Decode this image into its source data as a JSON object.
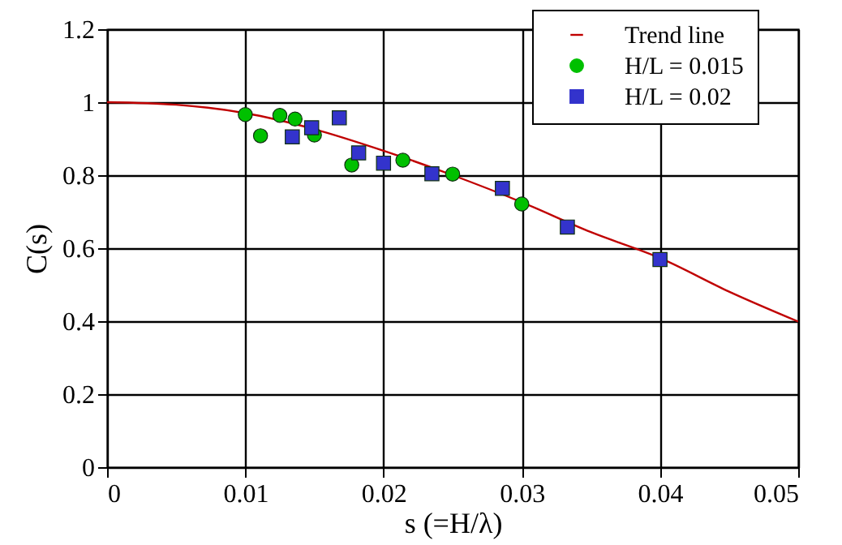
{
  "chart_data": {
    "type": "scatter",
    "xlabel": "s (=H/λ)",
    "ylabel": "C(s)",
    "xlim": [
      0,
      0.05
    ],
    "xticks": [
      0,
      0.01,
      0.02,
      0.03,
      0.04,
      0.05
    ],
    "ylim": [
      0,
      1.2
    ],
    "yticks": [
      0,
      0.2,
      0.4,
      0.6,
      0.8,
      1,
      1.2
    ],
    "grid": true,
    "legend": "top right",
    "series": [
      {
        "name": "Trend line",
        "type": "line",
        "color": "#c00000",
        "marker": "none",
        "x": [
          0,
          0.005,
          0.01,
          0.015,
          0.02,
          0.025,
          0.03,
          0.035,
          0.04,
          0.045,
          0.05
        ],
        "values": [
          1.0,
          0.993,
          0.97,
          0.926,
          0.867,
          0.8,
          0.726,
          0.644,
          0.573,
          0.481,
          0.399
        ]
      },
      {
        "name": "H/L = 0.015",
        "color": "#00c000",
        "marker": "circle",
        "x": [
          0.01,
          0.0111,
          0.0125,
          0.0136,
          0.015,
          0.0177,
          0.0214,
          0.025,
          0.03
        ],
        "values": [
          0.966,
          0.908,
          0.964,
          0.954,
          0.91,
          0.828,
          0.841,
          0.803,
          0.721
        ]
      },
      {
        "name": "H/L = 0.02",
        "color": "#3333cc",
        "marker": "square",
        "x": [
          0.0134,
          0.0148,
          0.0168,
          0.0182,
          0.02,
          0.0235,
          0.0286,
          0.0333,
          0.04
        ],
        "values": [
          0.905,
          0.93,
          0.957,
          0.861,
          0.833,
          0.804,
          0.764,
          0.658,
          0.569
        ]
      }
    ]
  }
}
